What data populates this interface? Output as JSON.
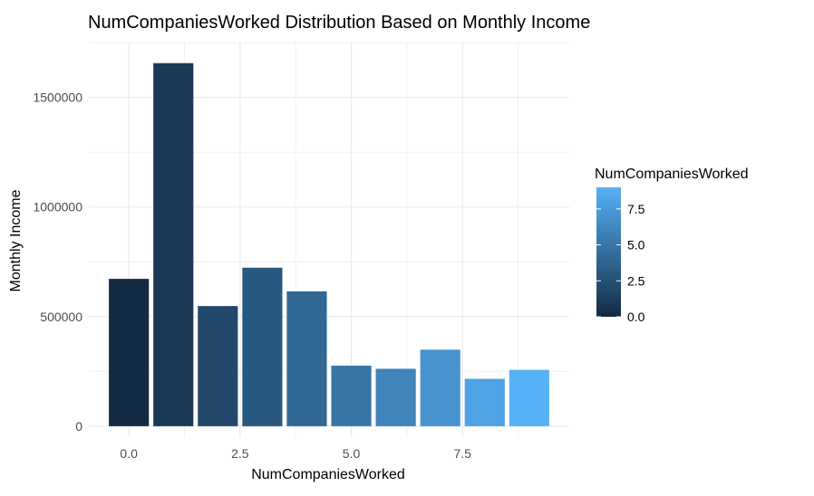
{
  "chart_data": {
    "type": "bar",
    "title": "NumCompaniesWorked Distribution Based on Monthly Income",
    "xlabel": "NumCompaniesWorked",
    "ylabel": "Monthly Income",
    "x": [
      0,
      1,
      2,
      3,
      4,
      5,
      6,
      7,
      8,
      9
    ],
    "values": [
      672000,
      1656000,
      548000,
      723000,
      615000,
      276000,
      262000,
      349000,
      216000,
      257000
    ],
    "xlim": [
      -0.9,
      9.9
    ],
    "ylim": [
      -50000,
      1750000
    ],
    "x_ticks": [
      0,
      2.5,
      5,
      7.5
    ],
    "x_tick_labels": [
      "0.0",
      "2.5",
      "5.0",
      "7.5"
    ],
    "y_ticks": [
      0,
      500000,
      1000000,
      1500000
    ],
    "y_tick_labels": [
      "0",
      "500000",
      "1000000",
      "1500000"
    ],
    "grid": true,
    "legend": {
      "title": "NumCompaniesWorked",
      "placement": "right",
      "type": "colorbar",
      "range": [
        0,
        9
      ],
      "ticks": [
        0,
        2.5,
        5,
        7.5
      ],
      "tick_labels": [
        "0.0",
        "2.5",
        "5.0",
        "7.5"
      ],
      "color_low": "#132B43",
      "color_high": "#56B1F7"
    }
  }
}
